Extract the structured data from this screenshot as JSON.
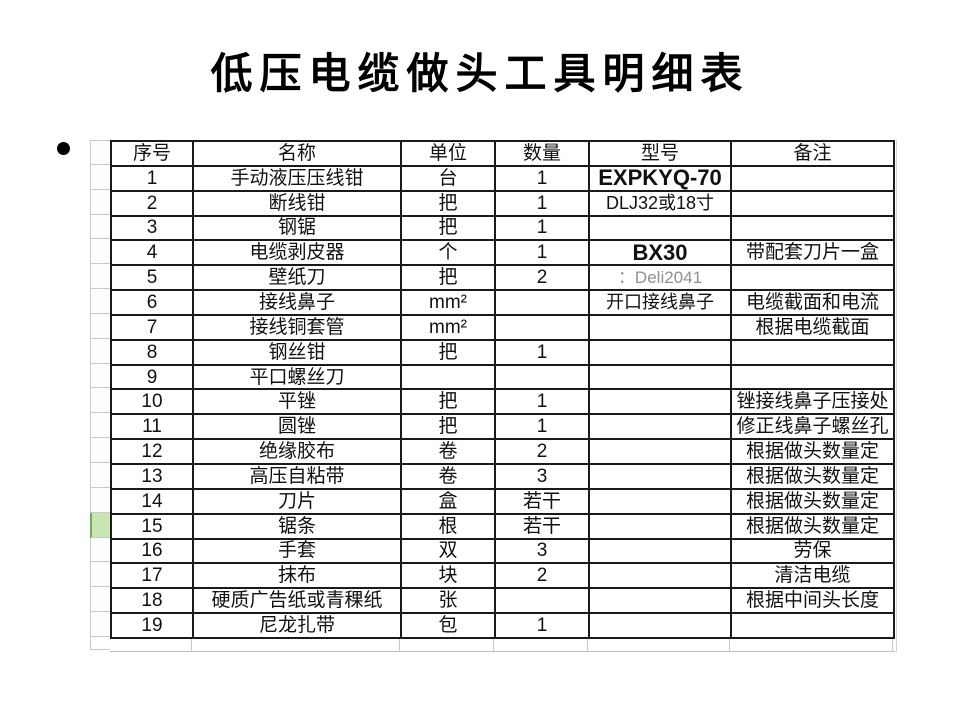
{
  "title": "低压电缆做头工具明细表",
  "table": {
    "headers": [
      "序号",
      "名称",
      "单位",
      "数量",
      "型号",
      "备注"
    ],
    "rows": [
      {
        "no": "1",
        "name": "手动液压压线钳",
        "unit": "台",
        "qty": "1",
        "model": "EXPKYQ-70",
        "model_style": "bold",
        "note": "",
        "highlight": false
      },
      {
        "no": "2",
        "name": "断线钳",
        "unit": "把",
        "qty": "1",
        "model": "DLJ32或18寸",
        "model_style": "plain",
        "note": "",
        "highlight": false
      },
      {
        "no": "3",
        "name": "钢锯",
        "unit": "把",
        "qty": "1",
        "model": "",
        "model_style": "",
        "note": "",
        "highlight": false
      },
      {
        "no": "4",
        "name": "电缆剥皮器",
        "unit": "个",
        "qty": "1",
        "model": "BX30",
        "model_style": "bold",
        "note": "带配套刀片一盒",
        "highlight": false
      },
      {
        "no": "5",
        "name": "壁纸刀",
        "unit": "把",
        "qty": "2",
        "model": "：Deli2041",
        "model_style": "gray",
        "note": "",
        "highlight": false
      },
      {
        "no": "6",
        "name": "接线鼻子",
        "unit": "mm²",
        "qty": "",
        "model": "开口接线鼻子",
        "model_style": "plain",
        "note": "电缆截面和电流",
        "highlight": false
      },
      {
        "no": "7",
        "name": "接线铜套管",
        "unit": "mm²",
        "qty": "",
        "model": "",
        "model_style": "",
        "note": "根据电缆截面",
        "highlight": false
      },
      {
        "no": "8",
        "name": "钢丝钳",
        "unit": "把",
        "qty": "1",
        "model": "",
        "model_style": "",
        "note": "",
        "highlight": false
      },
      {
        "no": "9",
        "name": "平口螺丝刀",
        "unit": "",
        "qty": "",
        "model": "",
        "model_style": "",
        "note": "",
        "highlight": false
      },
      {
        "no": "10",
        "name": "平锉",
        "unit": "把",
        "qty": "1",
        "model": "",
        "model_style": "",
        "note": "锉接线鼻子压接处",
        "highlight": false
      },
      {
        "no": "11",
        "name": "圆锉",
        "unit": "把",
        "qty": "1",
        "model": "",
        "model_style": "",
        "note": "修正线鼻子螺丝孔",
        "highlight": false
      },
      {
        "no": "12",
        "name": "绝缘胶布",
        "unit": "卷",
        "qty": "2",
        "model": "",
        "model_style": "",
        "note": "根据做头数量定",
        "highlight": false
      },
      {
        "no": "13",
        "name": "高压自粘带",
        "unit": "卷",
        "qty": "3",
        "model": "",
        "model_style": "",
        "note": "根据做头数量定",
        "highlight": false
      },
      {
        "no": "14",
        "name": "刀片",
        "unit": "盒",
        "qty": "若干",
        "model": "",
        "model_style": "",
        "note": "根据做头数量定",
        "highlight": false
      },
      {
        "no": "15",
        "name": "锯条",
        "unit": "根",
        "qty": "若干",
        "model": "",
        "model_style": "",
        "note": "根据做头数量定",
        "highlight": true
      },
      {
        "no": "16",
        "name": "手套",
        "unit": "双",
        "qty": "3",
        "model": "",
        "model_style": "",
        "note": "劳保",
        "highlight": false
      },
      {
        "no": "17",
        "name": "抹布",
        "unit": "块",
        "qty": "2",
        "model": "",
        "model_style": "",
        "note": "清洁电缆",
        "highlight": false
      },
      {
        "no": "18",
        "name": "硬质广告纸或青稞纸",
        "unit": "张",
        "qty": "",
        "model": "",
        "model_style": "",
        "note": "根据中间头长度",
        "highlight": false
      },
      {
        "no": "19",
        "name": "尼龙扎带",
        "unit": "包",
        "qty": "1",
        "model": "",
        "model_style": "",
        "note": "",
        "highlight": false
      }
    ]
  },
  "colors": {
    "border_black": "#1a1a1a",
    "highlight_green": "#c7e6b1",
    "highlight_green_edge": "#71ad52",
    "grid_gray": "#c9c9c9",
    "model_gray": "#909090"
  }
}
